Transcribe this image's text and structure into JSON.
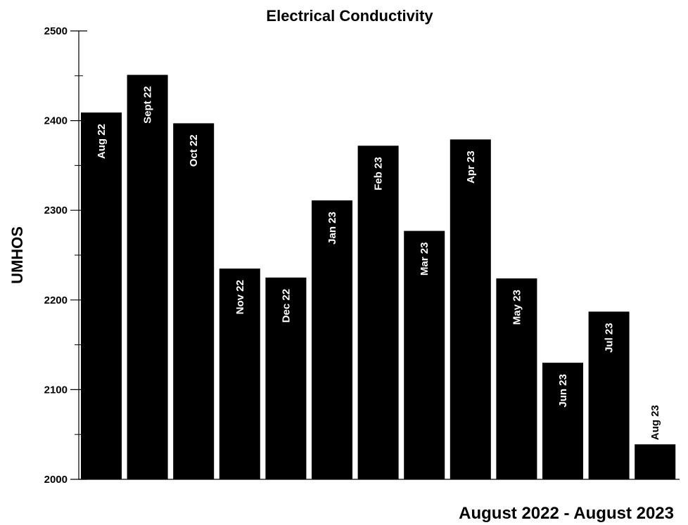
{
  "chart_data": {
    "type": "bar",
    "title": "Electrical Conductivity",
    "ylabel": "UMHOS",
    "xlabel": "August 2022 - August 2023",
    "ylim": [
      2000,
      2500
    ],
    "yticks": [
      "2000",
      "2100",
      "2200",
      "2300",
      "2400",
      "2500"
    ],
    "grid": false,
    "bar_color": "#000000",
    "categories": [
      "Aug 22",
      "Sept 22",
      "Oct 22",
      "Nov 22",
      "Dec 22",
      "Jan 23",
      "Feb 23",
      "Mar 23",
      "Apr 23",
      "May 23",
      "Jun 23",
      "Jul 23",
      "Aug 23"
    ],
    "values": [
      2409,
      2451,
      2397,
      2235,
      2225,
      2311,
      2372,
      2277,
      2379,
      2224,
      2130,
      2187,
      2039
    ]
  }
}
